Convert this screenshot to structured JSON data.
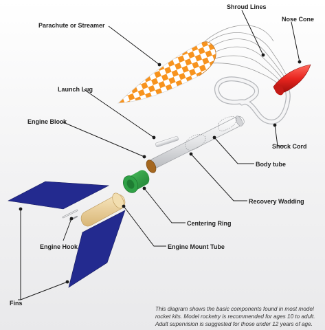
{
  "labels": {
    "parachute": "Parachute or Streamer",
    "shroud_lines": "Shroud Lines",
    "nose_cone": "Nose Cone",
    "launch_lug": "Launch Lug",
    "engine_block": "Engine Block",
    "shock_cord": "Shock Cord",
    "body_tube": "Body tube",
    "recovery_wadding": "Recovery Wadding",
    "centering_ring": "Centering Ring",
    "engine_hook": "Engine Hook",
    "engine_mount_tube": "Engine Mount Tube",
    "fins": "Fins"
  },
  "caption": {
    "line1": "This diagram shows the basic components found in most model",
    "line2": "rocket kits. Model rocketry is recommended for ages 10 to adult.",
    "line3": "Adult supervision is suggested for those under 12 years of age."
  },
  "colors": {
    "parachute_orange": "#f7931e",
    "nose_cone_red": "#e8251f",
    "fin_blue": "#232a8f",
    "centering_ring_green": "#2fa146",
    "engine_block_brown": "#a5671f",
    "engine_mount_tan": "#ecd29b"
  }
}
